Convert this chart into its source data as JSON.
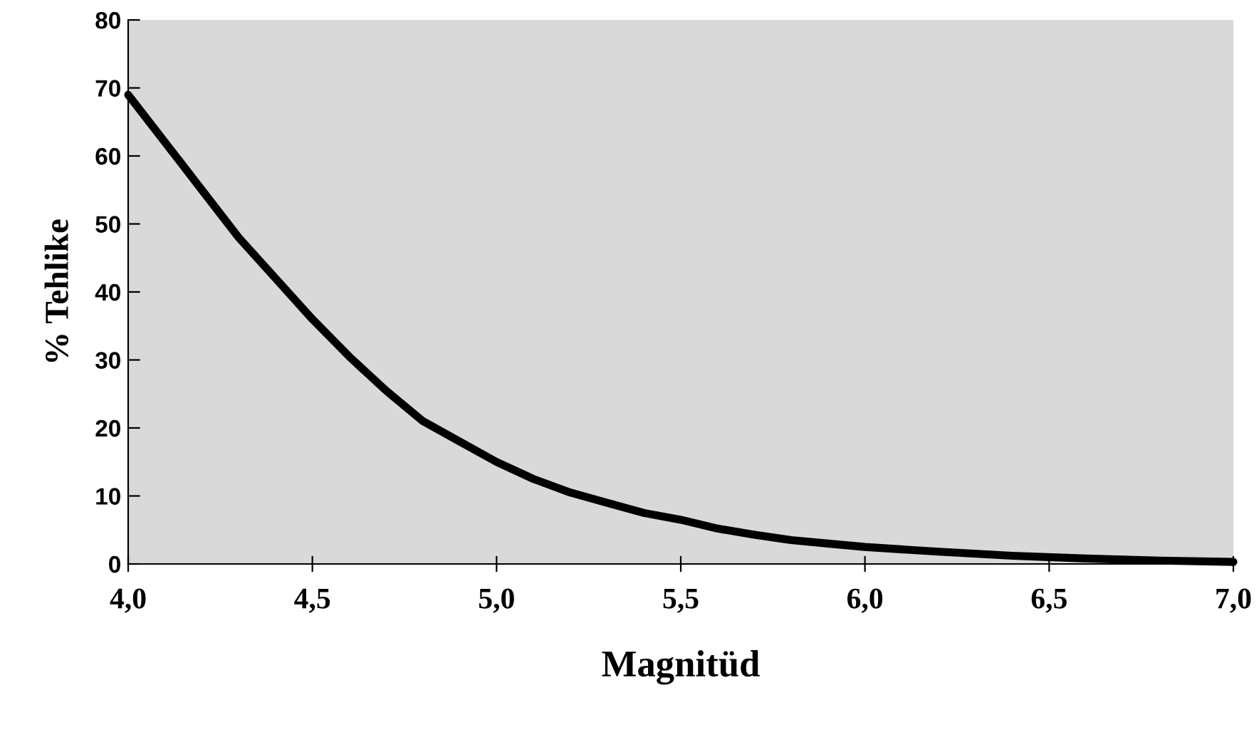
{
  "chart_data": {
    "type": "line",
    "xlabel": "Magnitüd",
    "ylabel": "% Tehlike",
    "series": [
      {
        "color": "#000000",
        "x": [
          4.0,
          4.1,
          4.2,
          4.3,
          4.4,
          4.5,
          4.6,
          4.7,
          4.8,
          4.9,
          5.0,
          5.1,
          5.2,
          5.3,
          5.4,
          5.5,
          5.6,
          5.7,
          5.8,
          5.9,
          6.0,
          6.2,
          6.4,
          6.6,
          6.8,
          7.0
        ],
        "values": [
          69,
          62,
          55,
          48,
          42,
          36,
          30.5,
          25.5,
          21,
          18,
          15,
          12.5,
          10.5,
          9,
          7.5,
          6.5,
          5.2,
          4.3,
          3.5,
          3,
          2.5,
          1.8,
          1.2,
          0.8,
          0.5,
          0.3
        ]
      }
    ],
    "xlim": [
      4.0,
      7.0
    ],
    "xticks": [
      {
        "value": 4.0,
        "label": "4,0"
      },
      {
        "value": 4.5,
        "label": "4,5"
      },
      {
        "value": 5.0,
        "label": "5,0"
      },
      {
        "value": 5.5,
        "label": "5,5"
      },
      {
        "value": 6.0,
        "label": "6,0"
      },
      {
        "value": 6.5,
        "label": "6,5"
      },
      {
        "value": 7.0,
        "label": "7,0"
      }
    ],
    "ylim": [
      0,
      80
    ],
    "yticks": [
      0,
      10,
      20,
      30,
      40,
      50,
      60,
      70,
      80
    ],
    "grid": false,
    "legend": false,
    "marker": "none",
    "line_style": "solid"
  }
}
